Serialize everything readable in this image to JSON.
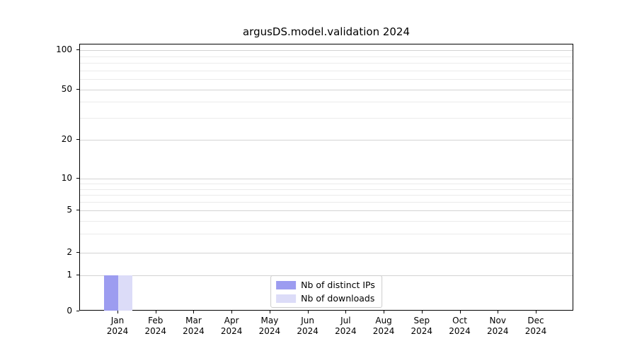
{
  "chart_data": {
    "type": "bar",
    "title": "argusDS.model.validation 2024",
    "categories": [
      "Jan",
      "Feb",
      "Mar",
      "Apr",
      "May",
      "Jun",
      "Jul",
      "Aug",
      "Sep",
      "Oct",
      "Nov",
      "Dec"
    ],
    "year_label": "2024",
    "series": [
      {
        "name": "Nb of distinct IPs",
        "color": "#9c9cf0",
        "values": [
          1,
          0,
          0,
          0,
          0,
          0,
          0,
          0,
          0,
          0,
          0,
          0
        ]
      },
      {
        "name": "Nb of downloads",
        "color": "#dcdcf8",
        "values": [
          1,
          0,
          0,
          0,
          0,
          0,
          0,
          0,
          0,
          0,
          0,
          0
        ]
      }
    ],
    "yscale": "symlog",
    "yticks": [
      0,
      1,
      2,
      5,
      10,
      20,
      50,
      100
    ],
    "minor_yticks": [
      3,
      4,
      6,
      7,
      8,
      9,
      30,
      40,
      60,
      70,
      80,
      90
    ],
    "ylim": [
      0,
      110
    ],
    "grid": true,
    "legend_position": "lower center"
  }
}
